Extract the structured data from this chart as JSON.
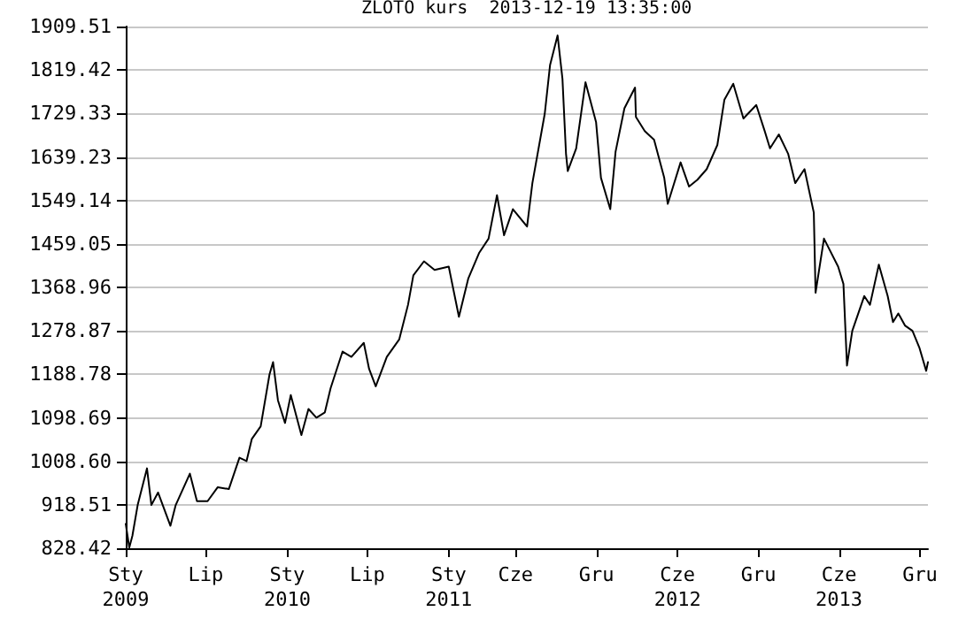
{
  "chart_data": {
    "type": "line",
    "title": "ZLOTO kurs  2013-12-19 13:35:00",
    "x": [
      "2009-01-01",
      "2009-01-09",
      "2009-01-16",
      "2009-01-28",
      "2009-02-18",
      "2009-02-28",
      "2009-03-15",
      "2009-04-12",
      "2009-04-24",
      "2009-05-26",
      "2009-06-11",
      "2009-07-05",
      "2009-07-28",
      "2009-08-22",
      "2009-09-15",
      "2009-10-01",
      "2009-10-13",
      "2009-11-02",
      "2009-11-22",
      "2009-11-30",
      "2009-12-11",
      "2009-12-27",
      "2010-01-09",
      "2010-02-02",
      "2010-02-18",
      "2010-03-08",
      "2010-03-27",
      "2010-04-09",
      "2010-05-06",
      "2010-05-26",
      "2010-06-23",
      "2010-07-05",
      "2010-07-20",
      "2010-08-14",
      "2010-09-11",
      "2010-10-01",
      "2010-10-13",
      "2010-11-06",
      "2010-11-30",
      "2011-01-01",
      "2011-01-24",
      "2011-02-14",
      "2011-03-11",
      "2011-04-01",
      "2011-04-20",
      "2011-05-06",
      "2011-05-26",
      "2011-06-27",
      "2011-07-09",
      "2011-08-06",
      "2011-08-18",
      "2011-09-04",
      "2011-09-15",
      "2011-09-23",
      "2011-09-27",
      "2011-10-16",
      "2011-11-06",
      "2011-11-30",
      "2011-12-11",
      "2012-01-01",
      "2012-01-13",
      "2012-02-02",
      "2012-02-26",
      "2012-02-28",
      "2012-03-19",
      "2012-04-09",
      "2012-05-02",
      "2012-05-10",
      "2012-06-08",
      "2012-06-27",
      "2012-07-16",
      "2012-08-06",
      "2012-08-30",
      "2012-09-15",
      "2012-10-05",
      "2012-10-28",
      "2012-11-26",
      "2012-12-15",
      "2012-12-27",
      "2013-01-16",
      "2013-02-06",
      "2013-02-22",
      "2013-03-15",
      "2013-04-05",
      "2013-04-09",
      "2013-04-28",
      "2013-05-30",
      "2013-06-11",
      "2013-06-19",
      "2013-07-01",
      "2013-07-28",
      "2013-08-10",
      "2013-08-30",
      "2013-09-19",
      "2013-10-01",
      "2013-10-13",
      "2013-10-28",
      "2013-11-14",
      "2013-11-30",
      "2013-12-15",
      "2013-12-19"
    ],
    "series": [
      {
        "color": "#000000",
        "values": [
          879,
          830,
          854,
          918,
          994,
          918,
          944,
          875,
          918,
          983,
          926,
          926,
          955,
          951,
          1016,
          1009,
          1055,
          1081,
          1189,
          1214,
          1135,
          1088,
          1146,
          1063,
          1117,
          1099,
          1110,
          1160,
          1236,
          1225,
          1254,
          1200,
          1164,
          1225,
          1261,
          1333,
          1394,
          1423,
          1405,
          1412,
          1308,
          1387,
          1441,
          1470,
          1560,
          1477,
          1531,
          1495,
          1585,
          1729,
          1830,
          1891,
          1801,
          1646,
          1610,
          1657,
          1794,
          1711,
          1596,
          1531,
          1650,
          1740,
          1783,
          1722,
          1693,
          1675,
          1596,
          1542,
          1628,
          1578,
          1592,
          1614,
          1664,
          1758,
          1791,
          1719,
          1747,
          1693,
          1657,
          1686,
          1646,
          1585,
          1614,
          1524,
          1358,
          1470,
          1412,
          1376,
          1207,
          1279,
          1351,
          1333,
          1416,
          1351,
          1297,
          1315,
          1290,
          1279,
          1243,
          1196,
          1214
        ]
      }
    ],
    "xlim": [
      "2009-01-01",
      "2013-12-19"
    ],
    "xticks": [
      {
        "value": "2009-01-01",
        "label": "Sty\n2009"
      },
      {
        "value": "2009-07-01",
        "label": "Lip"
      },
      {
        "value": "2010-01-01",
        "label": "Sty\n2010"
      },
      {
        "value": "2010-07-01",
        "label": "Lip"
      },
      {
        "value": "2011-01-01",
        "label": "Sty\n2011"
      },
      {
        "value": "2011-06-01",
        "label": "Cze"
      },
      {
        "value": "2011-12-01",
        "label": "Gru"
      },
      {
        "value": "2012-06-01",
        "label": "Cze\n2012"
      },
      {
        "value": "2012-12-01",
        "label": "Gru"
      },
      {
        "value": "2013-06-01",
        "label": "Cze\n2013"
      },
      {
        "value": "2013-12-01",
        "label": "Gru"
      }
    ],
    "ylim": [
      828.42,
      1909.51
    ],
    "yticks": [
      828.42,
      918.51,
      {
        "value": 1008.6,
        "label": "1008.60"
      },
      1098.69,
      1188.78,
      1278.87,
      1368.96,
      1459.05,
      1549.14,
      1639.23,
      1729.33,
      1819.42,
      1909.51
    ],
    "grid": "y",
    "marker": "none",
    "line_style": "solid"
  }
}
